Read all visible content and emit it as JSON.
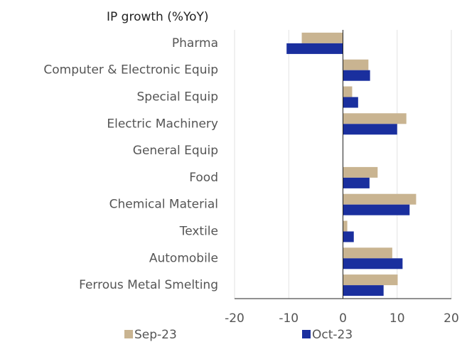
{
  "chart_data": {
    "type": "hbar",
    "axis_label": "IP growth (%YoY)",
    "categories": [
      "Pharma",
      "Computer & Electronic Equip",
      "Special Equip",
      "Electric Machinery",
      "General Equip",
      "Food",
      "Chemical Material",
      "Textile",
      "Automobile",
      "Ferrous Metal Smelting"
    ],
    "series": [
      {
        "name": "Sep-23",
        "color": "#c9b491",
        "values": [
          -7.6,
          4.7,
          1.7,
          11.7,
          null,
          6.4,
          13.5,
          0.8,
          9.1,
          10.1
        ]
      },
      {
        "name": "Oct-23",
        "color": "#1a2f9e",
        "values": [
          -10.4,
          5.0,
          2.8,
          10.0,
          null,
          4.9,
          12.3,
          2.0,
          11.0,
          7.5
        ]
      }
    ],
    "xlim": [
      -20,
      20
    ],
    "xticks": [
      -20,
      -10,
      0,
      10,
      20
    ],
    "grid": true
  }
}
